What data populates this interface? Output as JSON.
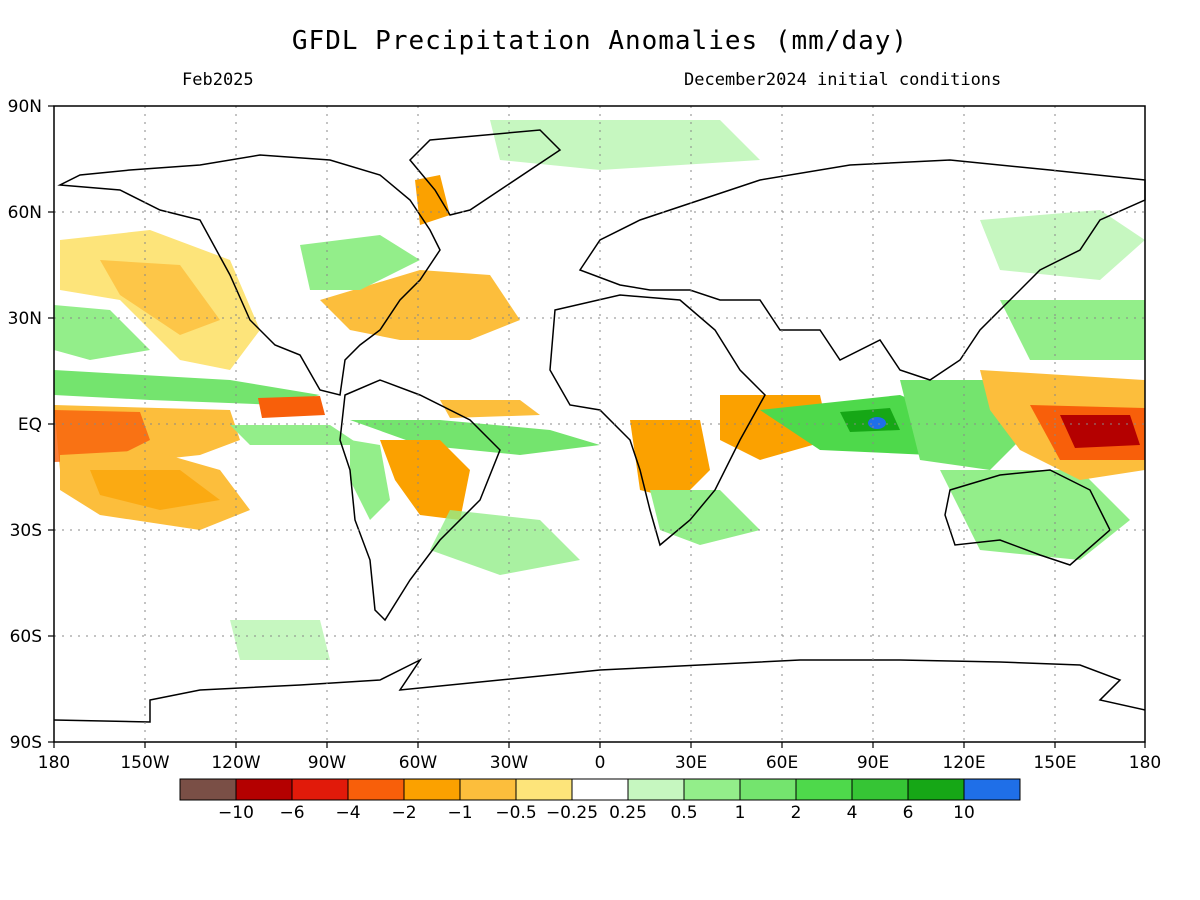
{
  "title": "GFDL Precipitation Anomalies (mm/day)",
  "valid_month": "Feb2025",
  "initial_conditions": "December2024 initial conditions",
  "axes": {
    "lat_labels": [
      "90N",
      "60N",
      "30N",
      "EQ",
      "30S",
      "60S",
      "90S"
    ],
    "lon_labels": [
      "180",
      "150W",
      "120W",
      "90W",
      "60W",
      "30W",
      "0",
      "30E",
      "60E",
      "90E",
      "120E",
      "150E",
      "180"
    ]
  },
  "colorbar": {
    "colors": [
      "#7a4f46",
      "#b40000",
      "#e11a0a",
      "#f85f0a",
      "#fba100",
      "#fcbe3c",
      "#fde47a",
      "#ffffff",
      "#c6f7c0",
      "#93ee8a",
      "#74e46e",
      "#4ed94b",
      "#36c535",
      "#16a716",
      "#1f6fe8"
    ],
    "labels": [
      "−10",
      "−6",
      "−4",
      "−2",
      "−1",
      "−0.5",
      "−0.25",
      "0.25",
      "0.5",
      "1",
      "2",
      "4",
      "6",
      "10"
    ]
  },
  "map": {
    "projection": "cylindrical equidistant",
    "lon_range": [
      -180,
      180
    ],
    "lat_range": [
      -90,
      90
    ],
    "gridlines": "dotted every 30 degrees",
    "features": [
      {
        "name": "central-pacific-dry",
        "sign": "negative",
        "max_anomaly_mm_day": -4
      },
      {
        "name": "western-pacific-dry",
        "sign": "negative",
        "max_anomaly_mm_day": -6
      },
      {
        "name": "indian-ocean-wet",
        "sign": "positive",
        "max_anomaly_mm_day": 10
      },
      {
        "name": "maritime-continent-wet",
        "sign": "positive",
        "max_anomaly_mm_day": 4
      },
      {
        "name": "south-america-dry",
        "sign": "negative",
        "max_anomaly_mm_day": -2
      },
      {
        "name": "southern-africa-dry",
        "sign": "negative",
        "max_anomaly_mm_day": -2
      }
    ]
  }
}
